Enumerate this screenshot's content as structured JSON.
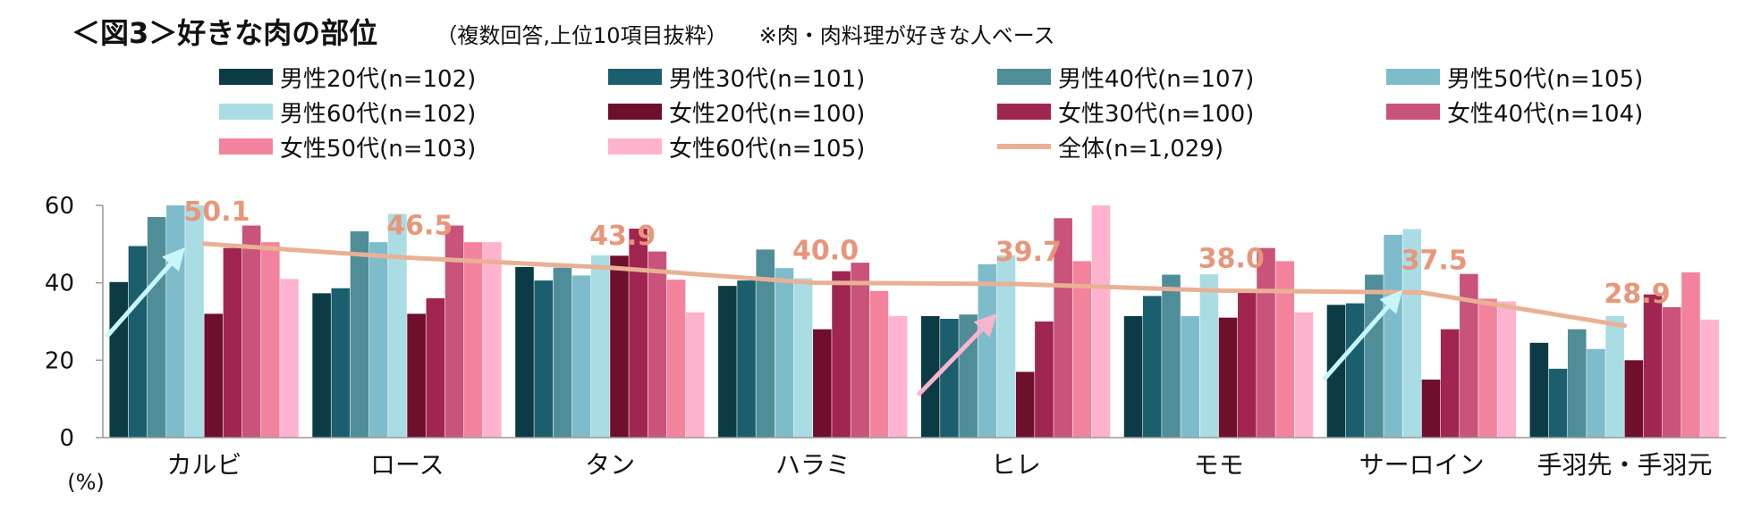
{
  "title": "＜図3＞好きな肉の部位",
  "subtitle": "（複数回答,上位10項目抜粋）",
  "note": "※肉・肉料理が好きな人ベース",
  "chart_data": {
    "type": "bar",
    "ylabel": "(%)",
    "ylim": [
      0,
      60
    ],
    "yticks": [
      0,
      20,
      40,
      60
    ],
    "grid": false,
    "legend_position": "top",
    "categories": [
      "カルビ",
      "ロース",
      "タン",
      "ハラミ",
      "ヒレ",
      "モモ",
      "サーロイン",
      "手羽先・手羽元"
    ],
    "series": [
      {
        "name": "男性20代(n=102)",
        "color": "#0d3b45",
        "values": [
          40.2,
          37.3,
          44.1,
          39.2,
          31.4,
          31.4,
          34.3,
          24.5
        ]
      },
      {
        "name": "男性30代(n=101)",
        "color": "#1b5f6e",
        "values": [
          49.5,
          38.6,
          40.6,
          40.6,
          30.7,
          36.6,
          34.7,
          17.8
        ]
      },
      {
        "name": "男性40代(n=107)",
        "color": "#4f8d98",
        "values": [
          57.0,
          53.3,
          43.9,
          48.6,
          31.8,
          42.1,
          42.1,
          28.0
        ]
      },
      {
        "name": "男性50代(n=105)",
        "color": "#7fbccb",
        "values": [
          60.0,
          50.5,
          41.9,
          43.8,
          44.8,
          31.4,
          52.4,
          22.9
        ]
      },
      {
        "name": "男性60代(n=102)",
        "color": "#a9dde3",
        "values": [
          60.0,
          57.8,
          47.1,
          41.2,
          47.1,
          42.2,
          53.9,
          31.4
        ]
      },
      {
        "name": "女性20代(n=100)",
        "color": "#6e0f2c",
        "values": [
          32.0,
          32.0,
          47.0,
          28.0,
          17.0,
          31.0,
          15.0,
          20.0
        ]
      },
      {
        "name": "女性30代(n=100)",
        "color": "#a02550",
        "values": [
          49.0,
          36.0,
          54.0,
          43.0,
          30.0,
          38.0,
          28.0,
          37.0
        ]
      },
      {
        "name": "女性40代(n=104)",
        "color": "#c9537a",
        "values": [
          54.8,
          54.8,
          48.1,
          45.2,
          56.7,
          49.0,
          42.3,
          33.7
        ]
      },
      {
        "name": "女性50代(n=103)",
        "color": "#f3839c",
        "values": [
          50.5,
          50.5,
          40.8,
          37.9,
          45.6,
          45.6,
          35.9,
          42.7
        ]
      },
      {
        "name": "女性60代(n=105)",
        "color": "#ffb3cf",
        "values": [
          41.0,
          50.5,
          32.4,
          31.4,
          60.0,
          32.4,
          35.2,
          30.5
        ]
      }
    ],
    "total_line": {
      "name": "全体(n=1,029)",
      "color": "#e8b195",
      "label_color": "#e8967a",
      "values": [
        50.1,
        46.5,
        43.9,
        40.0,
        39.7,
        38.0,
        37.5,
        28.9
      ],
      "labels": [
        "50.1",
        "46.5",
        "43.9",
        "40.0",
        "39.7",
        "38.0",
        "37.5",
        "28.9"
      ]
    },
    "annotations": [
      {
        "category": "カルビ",
        "from_value": 26,
        "to_value": 47,
        "color": "#c8f7fb"
      },
      {
        "category": "ヒレ",
        "from_value": 11,
        "to_value": 30,
        "color": "#f9b5cc"
      },
      {
        "category": "サーロイン",
        "from_value": 15,
        "to_value": 36,
        "color": "#c8f7fb"
      }
    ]
  }
}
